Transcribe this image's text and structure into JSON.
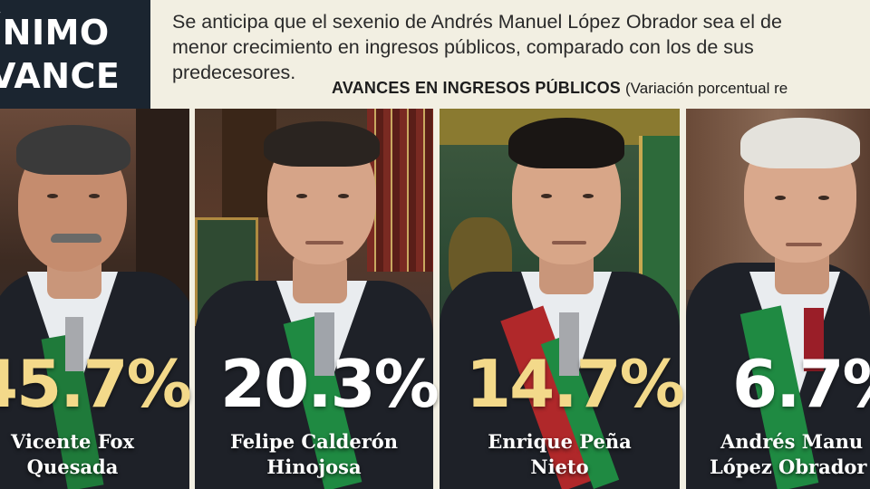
{
  "header": {
    "title_line1": "ÍNIMO",
    "title_line2": "VANCE",
    "intro_line1": "Se anticipa que el sexenio de Andrés Manuel López Obrador sea el de",
    "intro_line2": "menor crecimiento en ingresos públicos, comparado con los de sus",
    "intro_line3": "predecesores.",
    "subtitle_bold": "AVANCES EN INGRESOS PÚBLICOS",
    "subtitle_light": "(Variación porcentual re"
  },
  "colors": {
    "header_bg": "#1b2530",
    "page_bg": "#f2efe2",
    "gold_value": "#f3d98a",
    "white_value": "#ffffff"
  },
  "presidents": [
    {
      "value": "45.7%",
      "name_line1": "Vicente Fox",
      "name_line2": "Quesada"
    },
    {
      "value": "20.3%",
      "name_line1": "Felipe Calderón",
      "name_line2": "Hinojosa"
    },
    {
      "value": "14.7%",
      "name_line1": "Enrique Peña",
      "name_line2": "Nieto"
    },
    {
      "value": "6.7%",
      "name_line1": "Andrés Manu",
      "name_line2": "López Obrador"
    }
  ]
}
